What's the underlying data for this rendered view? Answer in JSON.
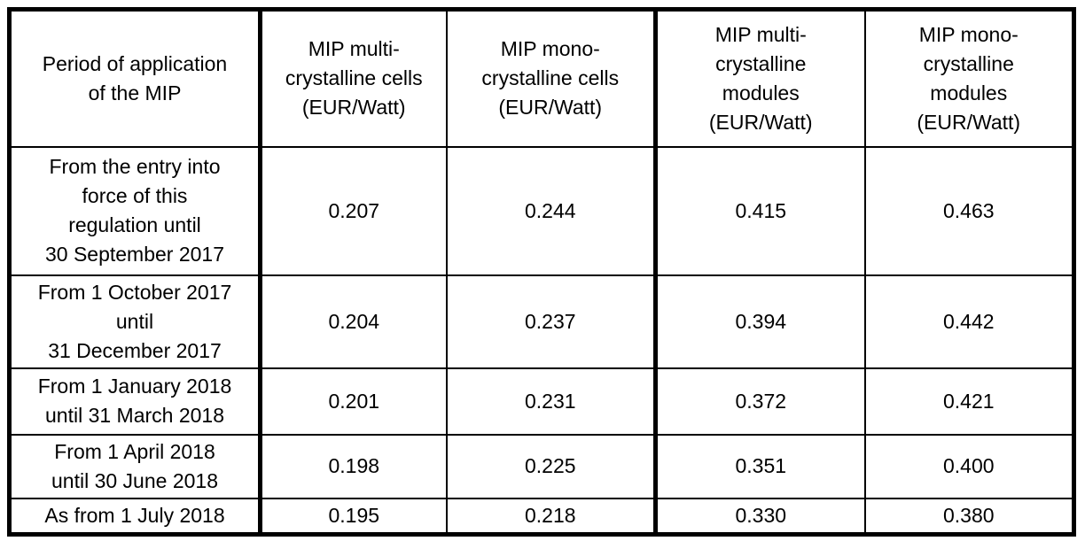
{
  "colors": {
    "background": "#ffffff",
    "border": "#000000",
    "text": "#000000"
  },
  "table": {
    "columns": [
      {
        "label": "Period of application\nof the MIP"
      },
      {
        "label": "MIP multi-\ncrystalline cells\n(EUR/Watt)"
      },
      {
        "label": "MIP mono-\ncrystalline cells\n(EUR/Watt)"
      },
      {
        "label": "MIP multi-\ncrystalline\nmodules\n(EUR/Watt)"
      },
      {
        "label": "MIP mono-\ncrystalline\nmodules\n(EUR/Watt)"
      }
    ],
    "rows": [
      {
        "period": "From the entry into\nforce of this\nregulation until\n30 September 2017",
        "values": [
          "0.207",
          "0.244",
          "0.415",
          "0.463"
        ]
      },
      {
        "period": "From 1 October 2017\nuntil\n31 December 2017",
        "values": [
          "0.204",
          "0.237",
          "0.394",
          "0.442"
        ]
      },
      {
        "period": "From 1 January 2018\nuntil 31 March 2018",
        "values": [
          "0.201",
          "0.231",
          "0.372",
          "0.421"
        ]
      },
      {
        "period": "From 1 April 2018\nuntil 30 June 2018",
        "values": [
          "0.198",
          "0.225",
          "0.351",
          "0.400"
        ]
      },
      {
        "period": "As from 1 July 2018",
        "values": [
          "0.195",
          "0.218",
          "0.330",
          "0.380"
        ]
      }
    ]
  }
}
